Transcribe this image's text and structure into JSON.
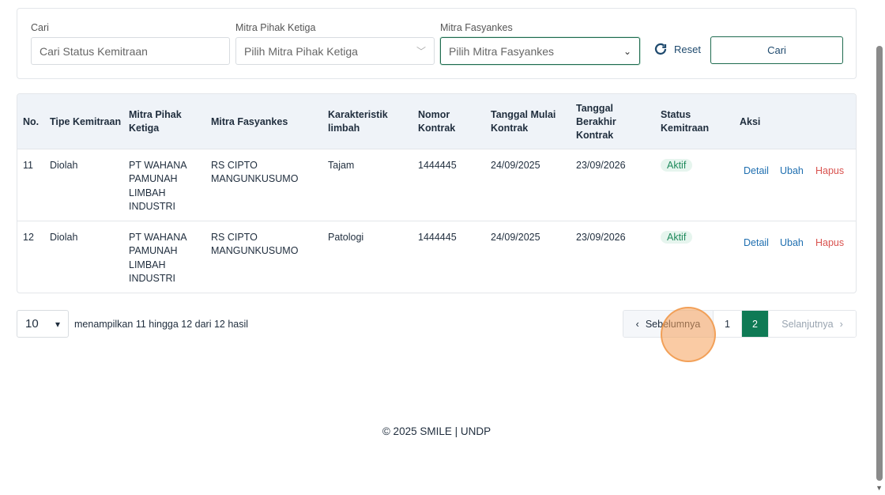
{
  "filters": {
    "search_label": "Cari",
    "search_placeholder": "Cari Status Kemitraan",
    "third_party_label": "Mitra Pihak Ketiga",
    "third_party_placeholder": "Pilih Mitra Pihak Ketiga",
    "facility_label": "Mitra Fasyankes",
    "facility_placeholder": "Pilih Mitra Fasyankes",
    "reset_label": "Reset",
    "search_button": "Cari"
  },
  "table": {
    "headers": [
      "No.",
      "Tipe Kemitraan",
      "Mitra Pihak Ketiga",
      "Mitra Fasyankes",
      "Karakteristik limbah",
      "Nomor Kontrak",
      "Tanggal Mulai Kontrak",
      "Tanggal Berakhir Kontrak",
      "Status Kemitraan",
      "Aksi"
    ],
    "rows": [
      {
        "no": "11",
        "type": "Diolah",
        "third_party": "PT WAHANA PAMUNAH LIMBAH INDUSTRI",
        "facility": "RS CIPTO MANGUNKUSUMO",
        "waste": "Tajam",
        "contract": "1444445",
        "start": "24/09/2025",
        "end": "23/09/2026",
        "status": "Aktif"
      },
      {
        "no": "12",
        "type": "Diolah",
        "third_party": "PT WAHANA PAMUNAH LIMBAH INDUSTRI",
        "facility": "RS CIPTO MANGUNKUSUMO",
        "waste": "Patologi",
        "contract": "1444445",
        "start": "24/09/2025",
        "end": "23/09/2026",
        "status": "Aktif"
      }
    ],
    "actions": {
      "detail": "Detail",
      "edit": "Ubah",
      "delete": "Hapus"
    }
  },
  "pagination": {
    "per_page": "10",
    "info": "menampilkan 11 hingga 12 dari 12 hasil",
    "prev": "Sebelumnya",
    "pages": [
      "1",
      "2"
    ],
    "current": "2",
    "next": "Selanjutnya"
  },
  "footer": "© 2025 SMILE | UNDP",
  "colors": {
    "primary": "#0f7a55",
    "link": "#1f6fb0",
    "danger": "#d9534f"
  }
}
